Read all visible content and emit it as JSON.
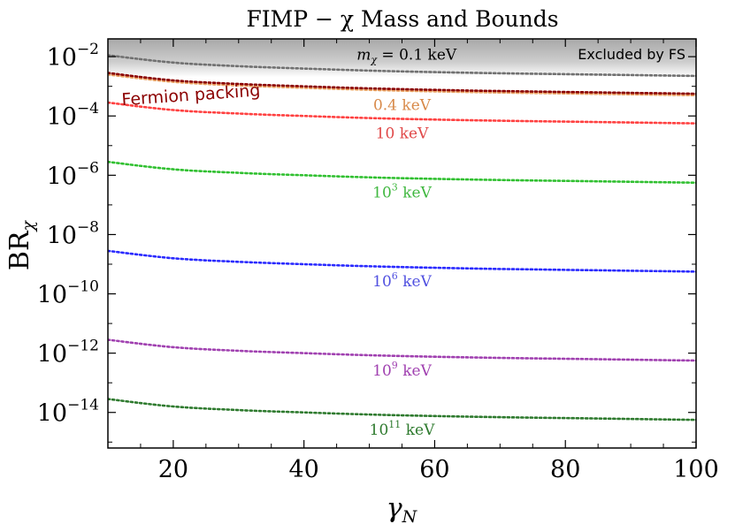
{
  "chart_data": {
    "type": "line",
    "scale": "log-y",
    "title": "FIMP − χ Mass and Bounds",
    "xlabel": "γ",
    "xlabel_sub": "N",
    "ylabel": "BR",
    "ylabel_sub": "χ",
    "xlim": [
      10,
      100
    ],
    "ylim_log10": [
      -15.2,
      -1.4
    ],
    "x_ticks": [
      {
        "value": 20,
        "label": "20"
      },
      {
        "value": 40,
        "label": "40"
      },
      {
        "value": 60,
        "label": "60"
      },
      {
        "value": 80,
        "label": "80"
      },
      {
        "value": 100,
        "label": "100"
      }
    ],
    "y_ticks": [
      {
        "exp": -2,
        "base": "10",
        "sup": "−2"
      },
      {
        "exp": -4,
        "base": "10",
        "sup": "−4"
      },
      {
        "exp": -6,
        "base": "10",
        "sup": "−6"
      },
      {
        "exp": -8,
        "base": "10",
        "sup": "−8"
      },
      {
        "exp": -10,
        "base": "10",
        "sup": "−10"
      },
      {
        "exp": -12,
        "base": "10",
        "sup": "−12"
      },
      {
        "exp": -14,
        "base": "10",
        "sup": "−14"
      }
    ],
    "excluded_region": {
      "label": "Excluded by FS",
      "lower_log10_at_xmin": -2.45,
      "lower_log10_at_xmax": -2.45,
      "color": "#b4b4b4"
    },
    "fermion_packing": {
      "label": "Fermion packing",
      "color": "#8b0000",
      "x": [
        10,
        20,
        30,
        40,
        50,
        60,
        70,
        80,
        90,
        100
      ],
      "log10_y": [
        -2.55,
        -2.8,
        -2.92,
        -3.0,
        -3.07,
        -3.12,
        -3.16,
        -3.19,
        -3.22,
        -3.25
      ]
    },
    "series": [
      {
        "name": "0.1 keV",
        "label_prefix": "m",
        "label_sub": "χ",
        "label_eq": " = ",
        "label_base": "0.1",
        "label_sup": "",
        "label_unit": " keV",
        "color": "#707070",
        "label_color": "#000000",
        "label_x": 53,
        "x": [
          10,
          20,
          30,
          40,
          50,
          60,
          70,
          80,
          90,
          100
        ],
        "log10_y": [
          -1.95,
          -2.2,
          -2.32,
          -2.4,
          -2.47,
          -2.52,
          -2.56,
          -2.59,
          -2.62,
          -2.65
        ]
      },
      {
        "name": "0.4 keV",
        "label_prefix": "",
        "label_sub": "",
        "label_eq": "",
        "label_base": "0.4",
        "label_sup": "",
        "label_unit": " keV",
        "color": "#e8a060",
        "label_color": "#d88a4a",
        "label_x": 55,
        "x": [
          10,
          20,
          30,
          40,
          50,
          60,
          70,
          80,
          90,
          100
        ],
        "log10_y": [
          -2.6,
          -2.85,
          -2.97,
          -3.05,
          -3.12,
          -3.17,
          -3.21,
          -3.24,
          -3.27,
          -3.3
        ]
      },
      {
        "name": "10 keV",
        "label_prefix": "",
        "label_sub": "",
        "label_eq": "",
        "label_base": "10",
        "label_sup": "",
        "label_unit": " keV",
        "color": "#ff4040",
        "label_color": "#e04848",
        "label_x": 55,
        "x": [
          10,
          20,
          30,
          40,
          50,
          60,
          70,
          80,
          90,
          100
        ],
        "log10_y": [
          -3.55,
          -3.8,
          -3.92,
          -4.0,
          -4.07,
          -4.12,
          -4.16,
          -4.19,
          -4.22,
          -4.25
        ]
      },
      {
        "name": "10^3 keV",
        "label_prefix": "",
        "label_sub": "",
        "label_eq": "",
        "label_base": "10",
        "label_sup": "3",
        "label_unit": " keV",
        "color": "#30c030",
        "label_color": "#40b840",
        "label_x": 55,
        "x": [
          10,
          20,
          30,
          40,
          50,
          60,
          70,
          80,
          90,
          100
        ],
        "log10_y": [
          -5.55,
          -5.8,
          -5.92,
          -6.0,
          -6.07,
          -6.12,
          -6.16,
          -6.19,
          -6.22,
          -6.25
        ]
      },
      {
        "name": "10^6 keV",
        "label_prefix": "",
        "label_sub": "",
        "label_eq": "",
        "label_base": "10",
        "label_sup": "6",
        "label_unit": " keV",
        "color": "#2a2aff",
        "label_color": "#5050e0",
        "label_x": 55,
        "x": [
          10,
          20,
          30,
          40,
          50,
          60,
          70,
          80,
          90,
          100
        ],
        "log10_y": [
          -8.55,
          -8.8,
          -8.92,
          -9.0,
          -9.07,
          -9.12,
          -9.16,
          -9.19,
          -9.22,
          -9.25
        ]
      },
      {
        "name": "10^9 keV",
        "label_prefix": "",
        "label_sub": "",
        "label_eq": "",
        "label_base": "10",
        "label_sup": "9",
        "label_unit": " keV",
        "color": "#a040b0",
        "label_color": "#a040b0",
        "label_x": 55,
        "x": [
          10,
          20,
          30,
          40,
          50,
          60,
          70,
          80,
          90,
          100
        ],
        "log10_y": [
          -11.55,
          -11.8,
          -11.92,
          -12.0,
          -12.07,
          -12.12,
          -12.16,
          -12.19,
          -12.22,
          -12.25
        ]
      },
      {
        "name": "10^11 keV",
        "label_prefix": "",
        "label_sub": "",
        "label_eq": "",
        "label_base": "10",
        "label_sup": "11",
        "label_unit": " keV",
        "color": "#2e7a2e",
        "label_color": "#2e7a2e",
        "label_x": 55,
        "x": [
          10,
          20,
          30,
          40,
          50,
          60,
          70,
          80,
          90,
          100
        ],
        "log10_y": [
          -13.55,
          -13.8,
          -13.92,
          -14.0,
          -14.07,
          -14.12,
          -14.16,
          -14.19,
          -14.22,
          -14.25
        ]
      }
    ]
  }
}
